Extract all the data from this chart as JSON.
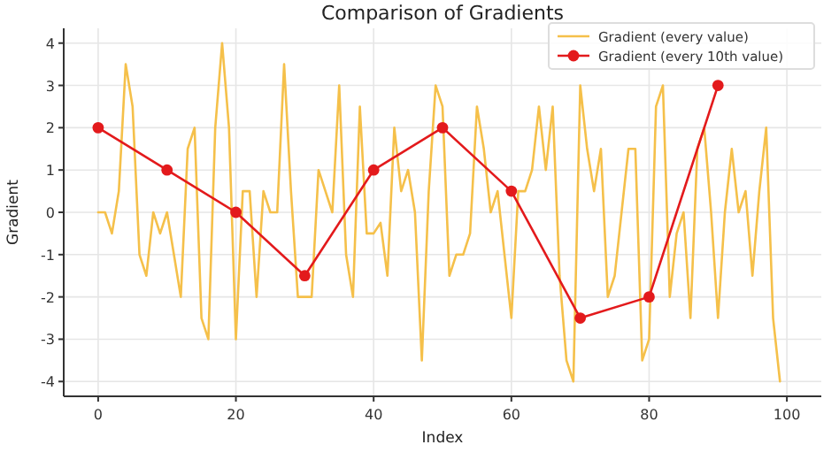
{
  "chart_data": {
    "type": "line",
    "title": "Comparison of Gradients",
    "xlabel": "Index",
    "ylabel": "Gradient",
    "xlim": [
      -5,
      105
    ],
    "xticks": [
      0,
      20,
      40,
      60,
      80,
      100
    ],
    "ylim": [
      -4.35,
      4.35
    ],
    "yticks": [
      -4,
      -3,
      -2,
      -1,
      0,
      1,
      2,
      3,
      4
    ],
    "grid": true,
    "legend": "top right",
    "series": [
      {
        "name": "Gradient (every value)",
        "color": "#f5c04a",
        "marker": "none",
        "x": [
          0,
          1,
          2,
          3,
          4,
          5,
          6,
          7,
          8,
          9,
          10,
          11,
          12,
          13,
          14,
          15,
          16,
          17,
          18,
          19,
          20,
          21,
          22,
          23,
          24,
          25,
          26,
          27,
          28,
          29,
          30,
          31,
          32,
          33,
          34,
          35,
          36,
          37,
          38,
          39,
          40,
          41,
          42,
          43,
          44,
          45,
          46,
          47,
          48,
          49,
          50,
          51,
          52,
          53,
          54,
          55,
          56,
          57,
          58,
          59,
          60,
          61,
          62,
          63,
          64,
          65,
          66,
          67,
          68,
          69,
          70,
          71,
          72,
          73,
          74,
          75,
          76,
          77,
          78,
          79,
          80,
          81,
          82,
          83,
          84,
          85,
          86,
          87,
          88,
          89,
          90,
          91,
          92,
          93,
          94,
          95,
          96,
          97,
          98,
          99
        ],
        "values": [
          0,
          0,
          -0.5,
          0.5,
          3.5,
          2.5,
          -1,
          -1.5,
          0,
          -0.5,
          0,
          -1,
          -2,
          1.5,
          2,
          -2.5,
          -3,
          2,
          4,
          2,
          -3,
          0.5,
          0.5,
          -2,
          0.5,
          0,
          0,
          3.5,
          0.5,
          -2,
          -2,
          -2,
          1,
          0.5,
          0,
          3,
          -1,
          -2,
          2.5,
          -0.5,
          -0.5,
          -0.25,
          -1.5,
          2,
          0.5,
          1,
          0,
          -3.5,
          0.5,
          3,
          2.5,
          -1.5,
          -1,
          -1,
          -0.5,
          2.5,
          1.5,
          0,
          0.5,
          -1,
          -2.5,
          0.5,
          0.5,
          1,
          2.5,
          1,
          2.5,
          -1.5,
          -3.5,
          -4,
          3,
          1.5,
          0.5,
          1.5,
          -2,
          -1.5,
          0,
          1.5,
          1.5,
          -3.5,
          -3,
          2.5,
          3,
          -2,
          -0.5,
          0,
          -2.5,
          1.5,
          2,
          0,
          -2.5,
          0,
          1.5,
          0,
          0.5,
          -1.5,
          0.5,
          2,
          -2.5,
          -4
        ]
      },
      {
        "name": "Gradient (every 10th value)",
        "color": "#e31a1c",
        "marker": "circle",
        "x": [
          0,
          10,
          20,
          30,
          40,
          50,
          60,
          70,
          80,
          90
        ],
        "values": [
          2,
          1,
          0,
          -1.5,
          1,
          2,
          0.5,
          -2.5,
          -2,
          3
        ]
      }
    ]
  }
}
